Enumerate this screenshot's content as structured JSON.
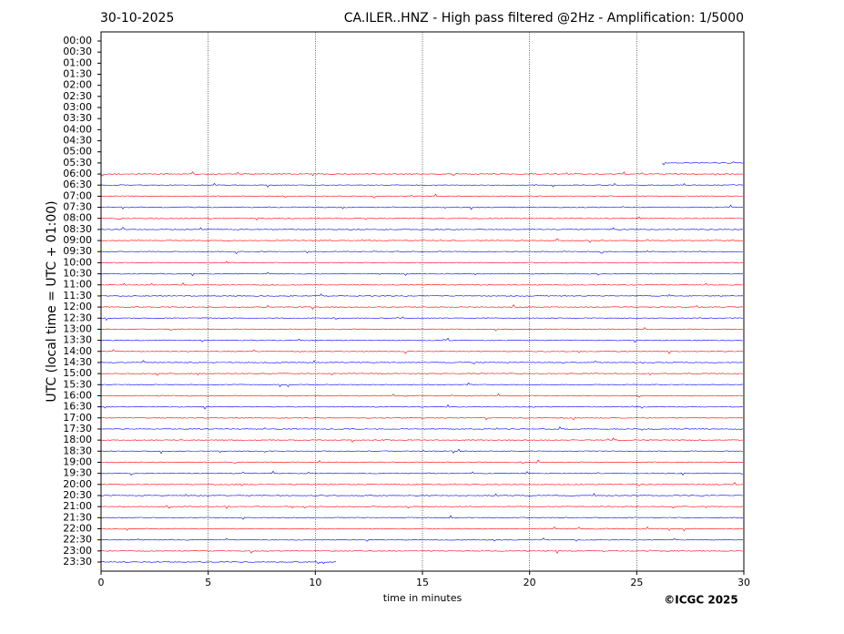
{
  "chart_data": {
    "type": "helicorder",
    "date": "30-10-2025",
    "title": "CA.ILER..HNZ - High pass filtered @2Hz - Amplification: 1/5000",
    "xlabel": "time in minutes",
    "ylabel": "UTC (local time = UTC + 01:00)",
    "copyright": "©ICGC 2025",
    "categories": [
      "00:00",
      "00:30",
      "01:00",
      "01:30",
      "02:00",
      "02:30",
      "03:00",
      "03:30",
      "04:00",
      "04:30",
      "05:00",
      "05:30",
      "06:00",
      "06:30",
      "07:00",
      "07:30",
      "08:00",
      "08:30",
      "09:00",
      "09:30",
      "10:00",
      "10:30",
      "11:00",
      "11:30",
      "12:00",
      "12:30",
      "13:00",
      "13:30",
      "14:00",
      "14:30",
      "15:00",
      "15:30",
      "16:00",
      "16:30",
      "17:00",
      "17:30",
      "18:00",
      "18:30",
      "19:00",
      "19:30",
      "20:00",
      "20:30",
      "21:00",
      "21:30",
      "22:00",
      "22:30",
      "23:00",
      "23:30"
    ],
    "xlim": [
      0,
      30
    ],
    "xticks": [
      0,
      5,
      10,
      15,
      20,
      25,
      30
    ],
    "grid": true,
    "colors": [
      "#ff0000",
      "#0000ff"
    ],
    "first_row": 11,
    "first_minute": 26.2,
    "last_row": 47,
    "last_minute": 11
  }
}
